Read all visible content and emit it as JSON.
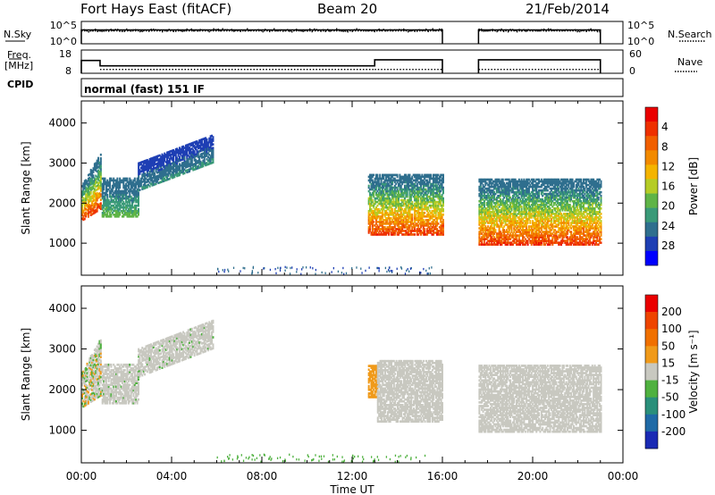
{
  "header": {
    "station": "Fort Hays East (fitACF)",
    "beam": "Beam 20",
    "date": "21/Feb/2014"
  },
  "strip_labels": {
    "nsky": "N.Sky",
    "nsearch": "N.Search",
    "freq": "Freq.",
    "freq_unit": "[MHz]",
    "nave": "Nave",
    "cpid": "CPID",
    "mode": "normal (fast) 151 IF"
  },
  "chart_data": [
    {
      "type": "line",
      "panel": "noise",
      "yscale": "log",
      "ytick_labels_left": [
        "10^5",
        "10^0"
      ],
      "ytick_labels_right": [
        "10^5",
        "10^0"
      ],
      "xlim_hours": [
        0,
        24
      ],
      "segments_hours": [
        [
          0,
          16
        ],
        [
          17.6,
          23
        ]
      ],
      "series": [
        {
          "name": "N.Sky",
          "style": "solid",
          "level_log10": 3.1
        },
        {
          "name": "N.Search",
          "style": "dotted",
          "level_log10": 2.9
        }
      ]
    },
    {
      "type": "line",
      "panel": "frequency",
      "ylim_left": [
        8,
        18
      ],
      "ytick_labels_left": [
        "18",
        "8"
      ],
      "ylim_right": [
        0,
        60
      ],
      "ytick_labels_right": [
        "60",
        "0"
      ],
      "series": [
        {
          "name": "Freq.",
          "style": "solid",
          "steps": [
            [
              0,
              0.83,
              13.5
            ],
            [
              0.83,
              13,
              11.2
            ],
            [
              13,
              16,
              13.8
            ],
            [
              17.6,
              23,
              13.8
            ]
          ]
        },
        {
          "name": "Nave",
          "style": "dotted",
          "steps": [
            [
              0,
              0.83,
              33
            ],
            [
              0.83,
              13,
              10
            ],
            [
              13,
              16,
              10
            ],
            [
              17.6,
              23,
              10
            ]
          ]
        }
      ]
    },
    {
      "type": "heatmap",
      "panel": "power",
      "ylabel": "Slant Range [km]",
      "ylim": [
        200,
        4550
      ],
      "yticks": [
        1000,
        2000,
        3000,
        4000
      ],
      "xlim_hours": [
        0,
        24
      ],
      "colorbar": {
        "label": "Power [dB]",
        "range": [
          0,
          32
        ],
        "ticks": [
          "4",
          "8",
          "12",
          "16",
          "20",
          "24",
          "28"
        ],
        "colors": [
          "#0000ff",
          "#1e3fb4",
          "#2f6f8e",
          "#3a9a78",
          "#5fb447",
          "#b5cc26",
          "#f4b400",
          "#f28a00",
          "#f15f00",
          "#ee3000",
          "#ea0000"
        ]
      },
      "regions": [
        {
          "hours": [
            0,
            0.85
          ],
          "range_km": [
            1550,
            3250
          ],
          "power_db": [
            8,
            30
          ]
        },
        {
          "hours": [
            0.9,
            2.5
          ],
          "range_km": [
            1650,
            2600
          ],
          "power_db": [
            6,
            14
          ]
        },
        {
          "hours": [
            2.5,
            5.8
          ],
          "range_km": [
            2300,
            4150
          ],
          "power_db": [
            4,
            10
          ]
        },
        {
          "hours": [
            12.7,
            16
          ],
          "range_km": [
            1200,
            2700
          ],
          "power_db": [
            8,
            30
          ]
        },
        {
          "hours": [
            17.6,
            23
          ],
          "range_km": [
            950,
            2600
          ],
          "power_db": [
            8,
            30
          ]
        }
      ]
    },
    {
      "type": "heatmap",
      "panel": "velocity",
      "ylabel": "Slant Range [km]",
      "xlabel": "Time UT",
      "ylim": [
        200,
        4550
      ],
      "yticks": [
        1000,
        2000,
        3000,
        4000
      ],
      "xticks": [
        "00:00",
        "04:00",
        "08:00",
        "12:00",
        "16:00",
        "20:00",
        "00:00"
      ],
      "xlim_hours": [
        0,
        24
      ],
      "colorbar": {
        "label": "Velocity [m s⁻¹]",
        "range": [
          -250,
          250
        ],
        "ticks": [
          "200",
          "100",
          "50",
          "15",
          "-15",
          "-50",
          "-100",
          "-200"
        ],
        "colors": [
          "#1a2ab4",
          "#1f6aa6",
          "#2a8f7a",
          "#4fb13f",
          "#c8c8c0",
          "#f09a1a",
          "#f07000",
          "#ee4400",
          "#ea0000"
        ]
      },
      "regions": [
        {
          "hours": [
            0,
            0.85
          ],
          "range_km": [
            1550,
            3250
          ],
          "velocity": [
            -50,
            50
          ]
        },
        {
          "hours": [
            0.9,
            2.5
          ],
          "range_km": [
            1650,
            2600
          ],
          "velocity": [
            -30,
            15
          ]
        },
        {
          "hours": [
            2.5,
            5.8
          ],
          "range_km": [
            2300,
            4150
          ],
          "velocity": [
            -30,
            15
          ]
        },
        {
          "hours": [
            12.7,
            13.1
          ],
          "range_km": [
            1800,
            2600
          ],
          "velocity": [
            40,
            80
          ]
        },
        {
          "hours": [
            13.1,
            16
          ],
          "range_km": [
            1200,
            2700
          ],
          "velocity": [
            -15,
            15
          ]
        },
        {
          "hours": [
            17.6,
            23
          ],
          "range_km": [
            950,
            2600
          ],
          "velocity": [
            -15,
            15
          ]
        }
      ]
    }
  ]
}
